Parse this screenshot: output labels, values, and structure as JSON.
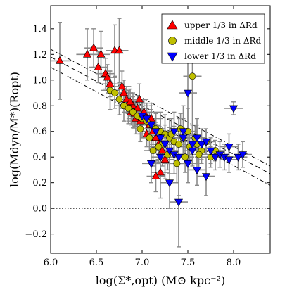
{
  "chart_data": {
    "type": "scatter",
    "xlabel": "log(Σ*,opt) (M⊙ kpc⁻²)",
    "ylabel": "log(Mdyn/M*)(Ropt)",
    "xlim": [
      6.0,
      8.4
    ],
    "ylim": [
      -0.35,
      1.58
    ],
    "x_ticks": [
      6.0,
      6.5,
      7.0,
      7.5,
      8.0
    ],
    "x_tick_labels": [
      "6.0",
      "6.5",
      "7.0",
      "7.5",
      "8.0"
    ],
    "y_ticks": [
      -0.2,
      0.0,
      0.2,
      0.4,
      0.6,
      0.8,
      1.0,
      1.2,
      1.4
    ],
    "y_tick_labels": [
      "−0.2",
      "0.0",
      "0.2",
      "0.4",
      "0.6",
      "0.8",
      "1.0",
      "1.2",
      "1.4"
    ],
    "grid": false,
    "legend_position": "top-right",
    "reference_lines": [
      {
        "style": "dotted",
        "y": 0.0
      },
      {
        "style": "dashed",
        "x": [
          6.0,
          8.4
        ],
        "y": [
          1.18,
          0.27
        ]
      },
      {
        "style": "dash-dot",
        "x": [
          6.0,
          8.4
        ],
        "y": [
          1.24,
          0.33
        ]
      },
      {
        "style": "dash-dot",
        "x": [
          6.0,
          8.4
        ],
        "y": [
          1.1,
          0.18
        ]
      }
    ],
    "series": [
      {
        "name": "upper 1/3 in ΔRd",
        "marker": "triangle-up",
        "color": "#ff0000",
        "x": [
          6.1,
          6.4,
          6.47,
          6.52,
          6.55,
          6.6,
          6.62,
          6.65,
          6.7,
          6.75,
          6.78,
          6.8,
          6.83,
          6.85,
          6.88,
          6.9,
          6.93,
          6.95,
          6.97,
          7.0,
          7.02,
          7.05,
          7.08,
          7.1,
          7.12,
          7.15,
          7.18,
          7.2,
          7.22,
          7.25,
          7.15,
          6.98,
          7.05,
          6.92,
          6.87
        ],
        "y": [
          1.15,
          1.2,
          1.25,
          1.1,
          1.2,
          1.05,
          1.02,
          0.97,
          1.23,
          1.23,
          0.95,
          0.9,
          0.85,
          0.8,
          0.75,
          0.8,
          0.7,
          0.78,
          0.85,
          0.72,
          0.75,
          0.7,
          0.65,
          0.7,
          0.6,
          0.55,
          0.5,
          0.28,
          0.45,
          0.38,
          0.25,
          0.68,
          0.58,
          0.74,
          0.83
        ],
        "yerr": [
          0.3,
          0.2,
          0.15,
          0.12,
          0.18,
          0.12,
          0.1,
          0.1,
          0.2,
          0.25,
          0.12,
          0.1,
          0.1,
          0.12,
          0.1,
          0.1,
          0.12,
          0.1,
          0.12,
          0.1,
          0.1,
          0.12,
          0.1,
          0.12,
          0.1,
          0.12,
          0.15,
          0.2,
          0.12,
          0.15,
          0.12,
          0.1,
          0.1,
          0.1,
          0.1
        ],
        "xerr": [
          0.12,
          0.12,
          0.1,
          0.1,
          0.1,
          0.1,
          0.1,
          0.1,
          0.1,
          0.1,
          0.1,
          0.1,
          0.1,
          0.1,
          0.1,
          0.1,
          0.1,
          0.1,
          0.1,
          0.1,
          0.1,
          0.1,
          0.1,
          0.1,
          0.1,
          0.1,
          0.1,
          0.1,
          0.1,
          0.1,
          0.1,
          0.1,
          0.1,
          0.1,
          0.1
        ]
      },
      {
        "name": "middle 1/3 in ΔRd",
        "marker": "circle",
        "color": "#bfbf00",
        "x": [
          6.65,
          6.7,
          6.75,
          6.8,
          6.85,
          6.9,
          6.95,
          7.0,
          7.05,
          7.1,
          7.15,
          7.2,
          7.25,
          7.3,
          7.35,
          7.4,
          7.45,
          7.5,
          7.55,
          7.6,
          7.65,
          7.7,
          7.75,
          7.8,
          7.12,
          7.22,
          7.32,
          7.42,
          7.52,
          7.62,
          7.58,
          7.47,
          7.38,
          7.28,
          7.18,
          7.08,
          6.98
        ],
        "y": [
          0.92,
          0.9,
          0.85,
          0.8,
          0.78,
          0.75,
          0.72,
          0.7,
          0.68,
          0.65,
          0.62,
          0.6,
          0.58,
          0.55,
          0.52,
          0.5,
          0.55,
          0.6,
          1.03,
          0.5,
          0.45,
          0.52,
          0.4,
          0.45,
          0.45,
          0.5,
          0.58,
          0.62,
          0.48,
          0.42,
          0.55,
          0.4,
          0.35,
          0.42,
          0.48,
          0.55,
          0.62
        ],
        "yerr": [
          0.15,
          0.12,
          0.12,
          0.12,
          0.12,
          0.12,
          0.1,
          0.15,
          0.12,
          0.15,
          0.12,
          0.15,
          0.15,
          0.15,
          0.12,
          0.15,
          0.15,
          0.18,
          0.45,
          0.15,
          0.1,
          0.1,
          0.08,
          0.08,
          0.12,
          0.12,
          0.12,
          0.12,
          0.1,
          0.1,
          0.1,
          0.12,
          0.15,
          0.12,
          0.12,
          0.1,
          0.1
        ],
        "xerr": [
          0.1,
          0.1,
          0.1,
          0.1,
          0.1,
          0.1,
          0.1,
          0.1,
          0.1,
          0.1,
          0.1,
          0.1,
          0.1,
          0.1,
          0.1,
          0.1,
          0.1,
          0.1,
          0.1,
          0.1,
          0.1,
          0.1,
          0.1,
          0.1,
          0.1,
          0.1,
          0.1,
          0.1,
          0.1,
          0.1,
          0.1,
          0.1,
          0.1,
          0.1,
          0.1,
          0.1,
          0.1
        ]
      },
      {
        "name": "lower 1/3 in ΔRd",
        "marker": "triangle-down",
        "color": "#0000ff",
        "x": [
          7.0,
          7.05,
          7.1,
          7.15,
          7.2,
          7.25,
          7.3,
          7.35,
          7.4,
          7.45,
          7.5,
          7.55,
          7.6,
          7.65,
          7.7,
          7.75,
          7.8,
          7.85,
          7.9,
          7.95,
          8.0,
          8.05,
          8.1,
          7.5,
          7.6,
          7.4,
          7.3,
          7.2,
          7.7,
          7.95,
          7.35,
          7.45,
          7.55,
          7.1
        ],
        "y": [
          0.72,
          0.7,
          0.65,
          0.6,
          0.55,
          0.5,
          0.45,
          0.42,
          0.4,
          0.6,
          0.9,
          0.5,
          0.55,
          0.5,
          0.52,
          0.45,
          0.4,
          0.42,
          0.4,
          0.38,
          0.78,
          0.4,
          0.42,
          0.35,
          0.3,
          0.05,
          0.2,
          0.4,
          0.25,
          0.48,
          0.6,
          0.55,
          0.45,
          0.35
        ],
        "yerr": [
          0.12,
          0.12,
          0.12,
          0.15,
          0.15,
          0.15,
          0.18,
          0.15,
          0.3,
          0.2,
          0.3,
          0.15,
          0.15,
          0.12,
          0.1,
          0.1,
          0.1,
          0.1,
          0.1,
          0.1,
          0.05,
          0.1,
          0.1,
          0.15,
          0.12,
          0.35,
          0.2,
          0.15,
          0.15,
          0.1,
          0.15,
          0.15,
          0.12,
          0.15
        ],
        "xerr": [
          0.1,
          0.1,
          0.1,
          0.1,
          0.1,
          0.1,
          0.1,
          0.1,
          0.1,
          0.1,
          0.1,
          0.1,
          0.1,
          0.1,
          0.1,
          0.1,
          0.1,
          0.1,
          0.1,
          0.1,
          0.1,
          0.1,
          0.1,
          0.1,
          0.1,
          0.1,
          0.1,
          0.1,
          0.1,
          0.1,
          0.1,
          0.1,
          0.1,
          0.1
        ]
      }
    ]
  }
}
